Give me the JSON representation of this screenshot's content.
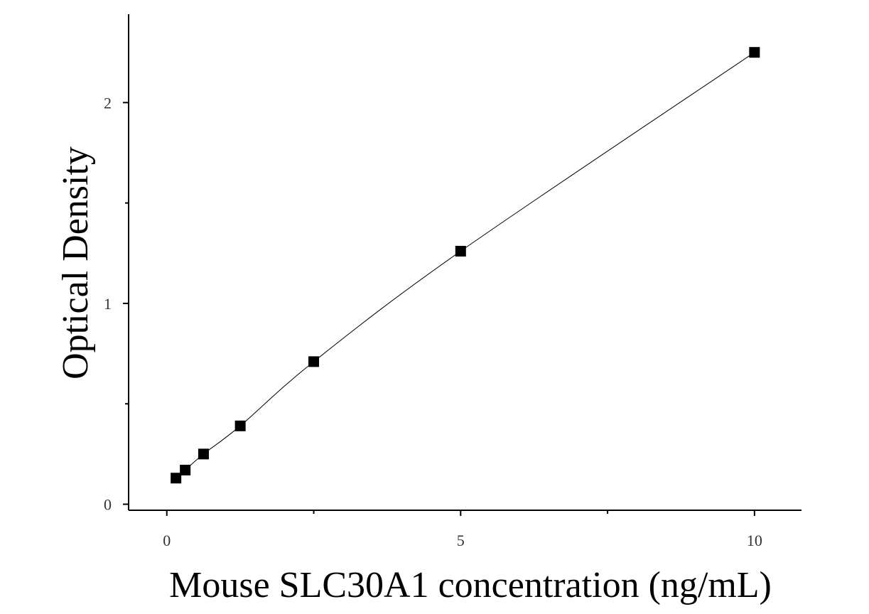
{
  "chart_data": {
    "type": "scatter",
    "xlabel": "Mouse SLC30A1 concentration (ng/mL)",
    "ylabel": "Optical Density",
    "xlim": [
      -0.65,
      10.8
    ],
    "ylim": [
      -0.03,
      2.44
    ],
    "x_ticks": [
      0,
      5,
      10
    ],
    "x_minor_ticks": [
      2.5,
      7.5
    ],
    "y_ticks": [
      0,
      1,
      2
    ],
    "y_minor_ticks": [
      0.5,
      1.5
    ],
    "grid": false,
    "legend": "none",
    "marker": "square",
    "fit_line": true,
    "points": [
      {
        "x": 0.156,
        "y": 0.13
      },
      {
        "x": 0.313,
        "y": 0.17
      },
      {
        "x": 0.625,
        "y": 0.25
      },
      {
        "x": 1.25,
        "y": 0.39
      },
      {
        "x": 2.5,
        "y": 0.71
      },
      {
        "x": 5,
        "y": 1.26
      },
      {
        "x": 10,
        "y": 2.25
      }
    ],
    "colors": {
      "marker": "#000000",
      "line": "#000000",
      "axis": "#000000"
    }
  }
}
